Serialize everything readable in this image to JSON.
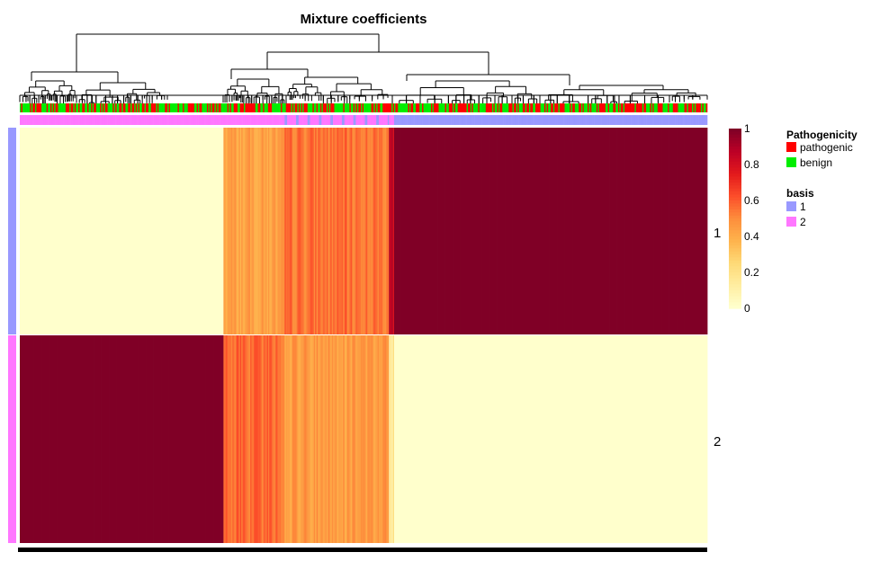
{
  "chart_data": {
    "type": "heatmap",
    "title": "Mixture coefficients",
    "rows": [
      "1",
      "2"
    ],
    "color_scale": {
      "min": 0,
      "max": 1,
      "ticks": [
        "0",
        "0.2",
        "0.4",
        "0.6",
        "0.8",
        "1"
      ],
      "colors": [
        "#FFFFCC",
        "#FFEDA0",
        "#FED976",
        "#FEB24C",
        "#FD8D3C",
        "#FC4E2A",
        "#E31A1C",
        "#BD0026",
        "#800026"
      ]
    },
    "column_groups": [
      {
        "columns": 160,
        "basis": "2",
        "row1": 0.0,
        "row2": 1.0
      },
      {
        "columns": 48,
        "basis": "2",
        "row1": 0.43,
        "row2": 0.57
      },
      {
        "columns": 82,
        "basis": "mixed",
        "row1": 0.55,
        "row2": 0.45
      },
      {
        "columns": 4,
        "basis": "2",
        "row1": 0.85,
        "row2": 0.15
      },
      {
        "columns": 246,
        "basis": "1",
        "row1": 1.0,
        "row2": 0.0
      }
    ],
    "legend": {
      "annotations": [
        {
          "title": "Pathogenicity",
          "items": [
            {
              "label": "pathogenic",
              "color": "#FF0000"
            },
            {
              "label": "benign",
              "color": "#00EE00"
            }
          ]
        },
        {
          "title": "basis",
          "items": [
            {
              "label": "1",
              "color": "#9999FF"
            },
            {
              "label": "2",
              "color": "#FF77FF"
            }
          ]
        }
      ]
    }
  }
}
